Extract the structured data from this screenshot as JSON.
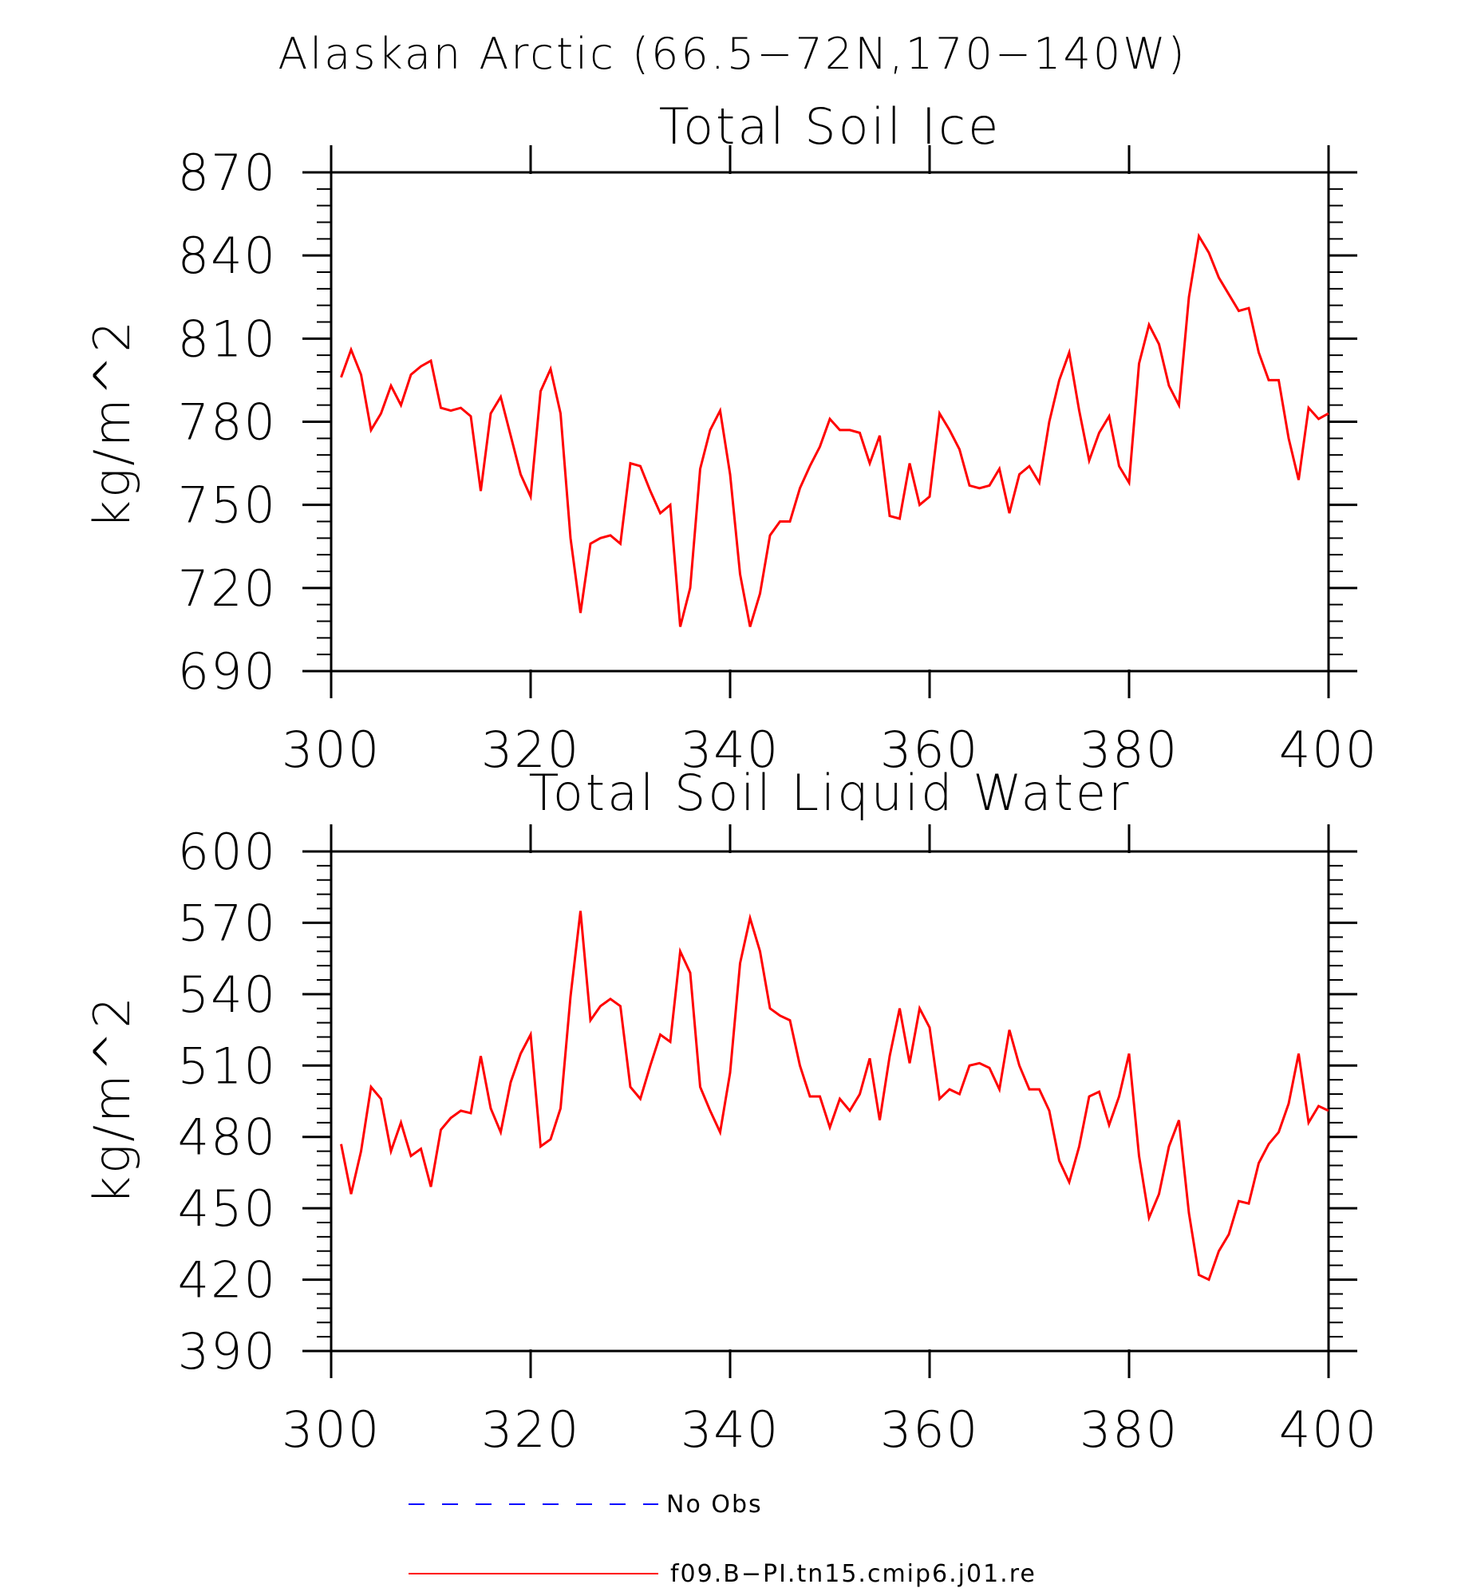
{
  "figure": {
    "title": "Alaskan Arctic (66.5−72N,170−140W)",
    "legend": [
      {
        "label": "No Obs",
        "color": "#0000ff",
        "style": "dashed"
      },
      {
        "label": "f09.B−PI.tn15.cmip6.j01.re",
        "color": "#ff0000",
        "style": "solid"
      }
    ]
  },
  "chart_data": [
    {
      "type": "line",
      "title": "Total Soil Ice",
      "ylabel": "kg/m^2",
      "xlabel": "",
      "xlim": [
        300,
        400
      ],
      "ylim": [
        690,
        870
      ],
      "xticks": [
        300,
        320,
        340,
        360,
        380,
        400
      ],
      "yticks": [
        690,
        720,
        750,
        780,
        810,
        840,
        870
      ],
      "grid": false,
      "series": [
        {
          "color": "#ff0000",
          "x": [
            301,
            302,
            303,
            304,
            305,
            306,
            307,
            308,
            309,
            310,
            311,
            312,
            313,
            314,
            315,
            316,
            317,
            318,
            319,
            320,
            321,
            322,
            323,
            324,
            325,
            326,
            327,
            328,
            329,
            330,
            331,
            332,
            333,
            334,
            335,
            336,
            337,
            338,
            339,
            340,
            341,
            342,
            343,
            344,
            345,
            346,
            347,
            348,
            349,
            350,
            351,
            352,
            353,
            354,
            355,
            356,
            357,
            358,
            359,
            360,
            361,
            362,
            363,
            364,
            365,
            366,
            367,
            368,
            369,
            370,
            371,
            372,
            373,
            374,
            375,
            376,
            377,
            378,
            379,
            380,
            381,
            382,
            383,
            384,
            385,
            386,
            387,
            388,
            389,
            390,
            391,
            392,
            393,
            394,
            395,
            396,
            397,
            398,
            399,
            400
          ],
          "y": [
            796,
            806,
            797,
            777,
            783,
            793,
            786,
            797,
            800,
            802,
            785,
            784,
            785,
            782,
            755,
            783,
            789,
            775,
            761,
            753,
            791,
            799,
            783,
            738,
            711,
            736,
            738,
            739,
            736,
            765,
            764,
            755,
            747,
            750,
            706,
            720,
            763,
            777,
            784,
            761,
            725,
            706,
            718,
            739,
            744,
            744,
            756,
            764,
            771,
            781,
            777,
            777,
            776,
            765,
            775,
            746,
            745,
            765,
            750,
            753,
            783,
            777,
            770,
            757,
            756,
            757,
            763,
            747,
            761,
            764,
            758,
            780,
            795,
            805,
            784,
            766,
            776,
            782,
            764,
            758,
            801,
            815,
            808,
            793,
            786,
            825,
            847,
            841,
            832,
            826,
            820,
            821,
            805,
            795,
            795,
            774,
            759,
            785,
            781,
            783
          ]
        }
      ]
    },
    {
      "type": "line",
      "title": "Total Soil Liquid Water",
      "ylabel": "kg/m^2",
      "xlabel": "",
      "xlim": [
        300,
        400
      ],
      "ylim": [
        390,
        600
      ],
      "xticks": [
        300,
        320,
        340,
        360,
        380,
        400
      ],
      "yticks": [
        390,
        420,
        450,
        480,
        510,
        540,
        570,
        600
      ],
      "grid": false,
      "series": [
        {
          "color": "#ff0000",
          "x": [
            301,
            302,
            303,
            304,
            305,
            306,
            307,
            308,
            309,
            310,
            311,
            312,
            313,
            314,
            315,
            316,
            317,
            318,
            319,
            320,
            321,
            322,
            323,
            324,
            325,
            326,
            327,
            328,
            329,
            330,
            331,
            332,
            333,
            334,
            335,
            336,
            337,
            338,
            339,
            340,
            341,
            342,
            343,
            344,
            345,
            346,
            347,
            348,
            349,
            350,
            351,
            352,
            353,
            354,
            355,
            356,
            357,
            358,
            359,
            360,
            361,
            362,
            363,
            364,
            365,
            366,
            367,
            368,
            369,
            370,
            371,
            372,
            373,
            374,
            375,
            376,
            377,
            378,
            379,
            380,
            381,
            382,
            383,
            384,
            385,
            386,
            387,
            388,
            389,
            390,
            391,
            392,
            393,
            394,
            395,
            396,
            397,
            398,
            399,
            400
          ],
          "y": [
            477,
            456,
            474,
            501,
            496,
            474,
            486,
            472,
            475,
            459,
            483,
            488,
            491,
            490,
            514,
            492,
            482,
            503,
            515,
            523,
            476,
            479,
            492,
            539,
            575,
            529,
            535,
            538,
            535,
            501,
            496,
            510,
            523,
            520,
            558,
            549,
            501,
            491,
            482,
            507,
            553,
            572,
            558,
            534,
            531,
            529,
            510,
            497,
            497,
            484,
            496,
            491,
            498,
            513,
            487,
            514,
            534,
            511,
            534,
            526,
            496,
            500,
            498,
            510,
            511,
            509,
            500,
            525,
            510,
            500,
            500,
            491,
            470,
            461,
            476,
            497,
            499,
            485,
            497,
            515,
            472,
            446,
            456,
            476,
            487,
            448,
            422,
            420,
            432,
            439,
            453,
            452,
            469,
            477,
            482,
            494,
            515,
            486,
            493,
            491
          ]
        }
      ]
    }
  ]
}
